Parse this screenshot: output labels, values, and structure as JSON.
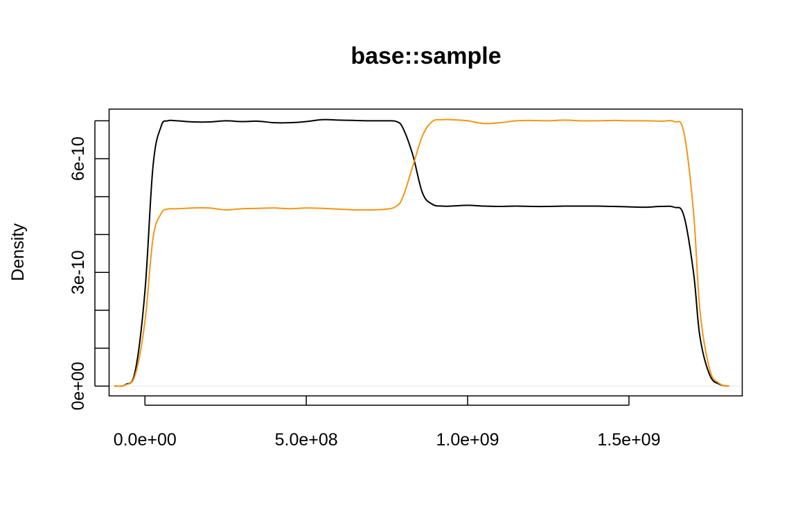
{
  "chart_data": {
    "type": "line",
    "title": "base::sample",
    "xlabel": "",
    "ylabel": "Density",
    "xlim": [
      -110000000.0,
      1850000000.0
    ],
    "ylim": [
      -2.5e-11,
      7.3e-10
    ],
    "x_ticks": [
      {
        "value": 0,
        "label": "0.0e+00"
      },
      {
        "value": 500000000,
        "label": "5.0e+08"
      },
      {
        "value": 1000000000,
        "label": "1.0e+09"
      },
      {
        "value": 1500000000,
        "label": "1.5e+09"
      }
    ],
    "y_ticks": [
      {
        "value": 0,
        "label": "0e+00"
      },
      {
        "value": 1e-10,
        "label": ""
      },
      {
        "value": 2e-10,
        "label": ""
      },
      {
        "value": 3e-10,
        "label": "3e-10"
      },
      {
        "value": 4e-10,
        "label": ""
      },
      {
        "value": 5e-10,
        "label": ""
      },
      {
        "value": 6e-10,
        "label": "6e-10"
      },
      {
        "value": 7e-10,
        "label": ""
      }
    ],
    "series": [
      {
        "name": "black",
        "color": "#000000",
        "x": [
          -95000000.0,
          -60000000.0,
          -30000000.0,
          0,
          25000000.0,
          50000000.0,
          70000000.0,
          100000000.0,
          150000000.0,
          200000000.0,
          250000000.0,
          300000000.0,
          350000000.0,
          400000000.0,
          450000000.0,
          500000000.0,
          550000000.0,
          600000000.0,
          650000000.0,
          700000000.0,
          750000000.0,
          780000000.0,
          800000000.0,
          830000000.0,
          860000000.0,
          890000000.0,
          920000000.0,
          950000000.0,
          1000000000.0,
          1050000000.0,
          1100000000.0,
          1150000000.0,
          1200000000.0,
          1250000000.0,
          1300000000.0,
          1350000000.0,
          1400000000.0,
          1450000000.0,
          1500000000.0,
          1550000000.0,
          1600000000.0,
          1640000000.0,
          1670000000.0,
          1700000000.0,
          1720000000.0,
          1750000000.0,
          1780000000.0,
          1810000000.0
        ],
        "y": [
          0,
          4e-12,
          4e-11,
          2.5e-10,
          5.8e-10,
          6.85e-10,
          7e-10,
          7e-10,
          6.97e-10,
          6.97e-10,
          7e-10,
          6.98e-10,
          6.99e-10,
          6.95e-10,
          6.95e-10,
          6.98e-10,
          7.03e-10,
          7.02e-10,
          7.01e-10,
          7e-10,
          7e-10,
          6.98e-10,
          6.8e-10,
          6.1e-10,
          5.1e-10,
          4.8e-10,
          4.75e-10,
          4.75e-10,
          4.77e-10,
          4.75e-10,
          4.74e-10,
          4.75e-10,
          4.74e-10,
          4.74e-10,
          4.75e-10,
          4.75e-10,
          4.75e-10,
          4.74e-10,
          4.73e-10,
          4.72e-10,
          4.74e-10,
          4.72e-10,
          4.5e-10,
          3e-10,
          1.3e-10,
          3e-11,
          5e-12,
          0
        ]
      },
      {
        "name": "orange",
        "color": "#f49512",
        "x": [
          -95000000.0,
          -60000000.0,
          -30000000.0,
          0,
          25000000.0,
          50000000.0,
          70000000.0,
          100000000.0,
          150000000.0,
          200000000.0,
          250000000.0,
          300000000.0,
          350000000.0,
          400000000.0,
          450000000.0,
          500000000.0,
          550000000.0,
          600000000.0,
          650000000.0,
          700000000.0,
          750000000.0,
          780000000.0,
          800000000.0,
          830000000.0,
          860000000.0,
          890000000.0,
          920000000.0,
          950000000.0,
          1000000000.0,
          1050000000.0,
          1100000000.0,
          1150000000.0,
          1200000000.0,
          1250000000.0,
          1300000000.0,
          1350000000.0,
          1400000000.0,
          1450000000.0,
          1500000000.0,
          1550000000.0,
          1600000000.0,
          1640000000.0,
          1670000000.0,
          1700000000.0,
          1720000000.0,
          1750000000.0,
          1780000000.0,
          1810000000.0
        ],
        "y": [
          0,
          3e-12,
          3e-11,
          1.7e-10,
          3.9e-10,
          4.55e-10,
          4.67e-10,
          4.68e-10,
          4.7e-10,
          4.7e-10,
          4.65e-10,
          4.68e-10,
          4.69e-10,
          4.7e-10,
          4.68e-10,
          4.7e-10,
          4.69e-10,
          4.67e-10,
          4.65e-10,
          4.65e-10,
          4.67e-10,
          4.75e-10,
          5e-10,
          5.8e-10,
          6.6e-10,
          6.98e-10,
          7.03e-10,
          7.03e-10,
          7e-10,
          6.93e-10,
          6.95e-10,
          7e-10,
          7.01e-10,
          7e-10,
          7.02e-10,
          7e-10,
          7e-10,
          7.01e-10,
          7e-10,
          7e-10,
          6.99e-10,
          6.98e-10,
          6.7e-10,
          4.6e-10,
          2e-10,
          4.5e-11,
          7e-12,
          0
        ]
      }
    ]
  }
}
